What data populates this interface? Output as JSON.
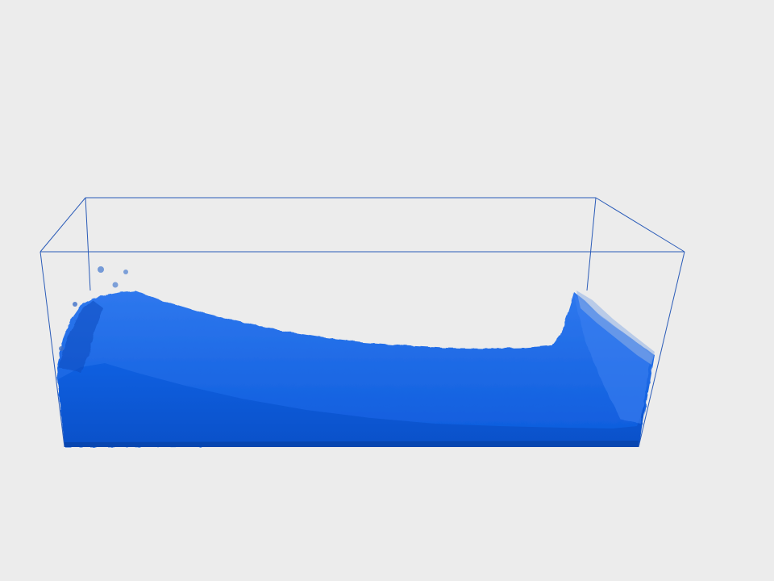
{
  "scene": {
    "background_color": "#ececec",
    "container_edge_color": "#2a5bb8",
    "fluid_color": "#0d5fe0",
    "fluid_dark_color": "#0a4fc4",
    "fluid_light_color": "#3c82f0",
    "splash_color": "#7fa6e0",
    "icons": [
      "tank-wireframe-icon",
      "fluid-surface-icon",
      "splash-droplet-icon"
    ]
  }
}
